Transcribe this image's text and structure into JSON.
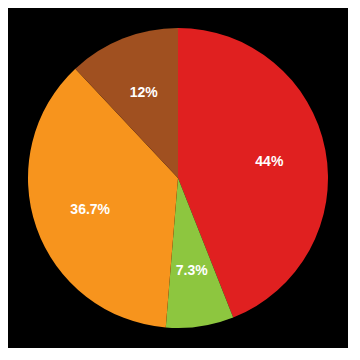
{
  "chart_data": {
    "type": "pie",
    "values": [
      44.0,
      7.3,
      36.7,
      12.0
    ],
    "value_labels": [
      "44%",
      "7.3%",
      "36.7%",
      "12%"
    ],
    "colors": [
      "#e02020",
      "#8dc63f",
      "#f7941d",
      "#a05020"
    ],
    "data_labels": true
  }
}
